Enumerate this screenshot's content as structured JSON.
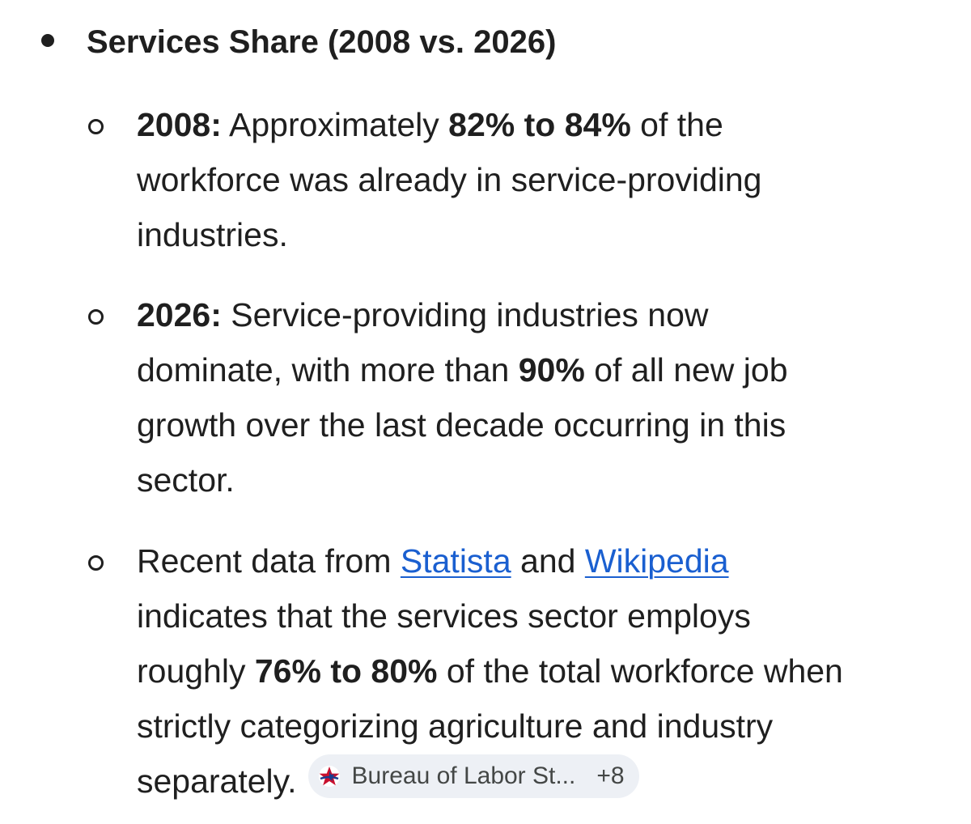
{
  "section": {
    "heading": "Services Share (2008 vs. 2026)"
  },
  "items": [
    {
      "year_label": "2008:",
      "lines": [
        {
          "pre": " Approximately ",
          "bold": "82% to 84%",
          "post": " of the"
        },
        {
          "text": "workforce was already in service-providing"
        },
        {
          "text": "industries."
        }
      ]
    },
    {
      "year_label": "2026:",
      "lines": [
        {
          "text": " Service-providing industries now"
        },
        {
          "pre": "dominate, with more than ",
          "bold": "90%",
          "post": " of all new job"
        },
        {
          "text": "growth over the last decade occurring in this"
        },
        {
          "text": "sector."
        }
      ]
    },
    {
      "lines": [
        {
          "pre": "Recent data from ",
          "link1": "Statista",
          "mid": " and ",
          "link2": "Wikipedia"
        },
        {
          "text": "indicates that the services sector employs"
        },
        {
          "pre": "roughly ",
          "bold": "76% to 80%",
          "post": " of the total workforce when"
        },
        {
          "text": "strictly categorizing agriculture and industry"
        },
        {
          "text": "separately."
        }
      ]
    }
  ],
  "source_chip": {
    "label": "Bureau of Labor St...",
    "more_count": "+8",
    "icon": "bls-star-icon"
  }
}
